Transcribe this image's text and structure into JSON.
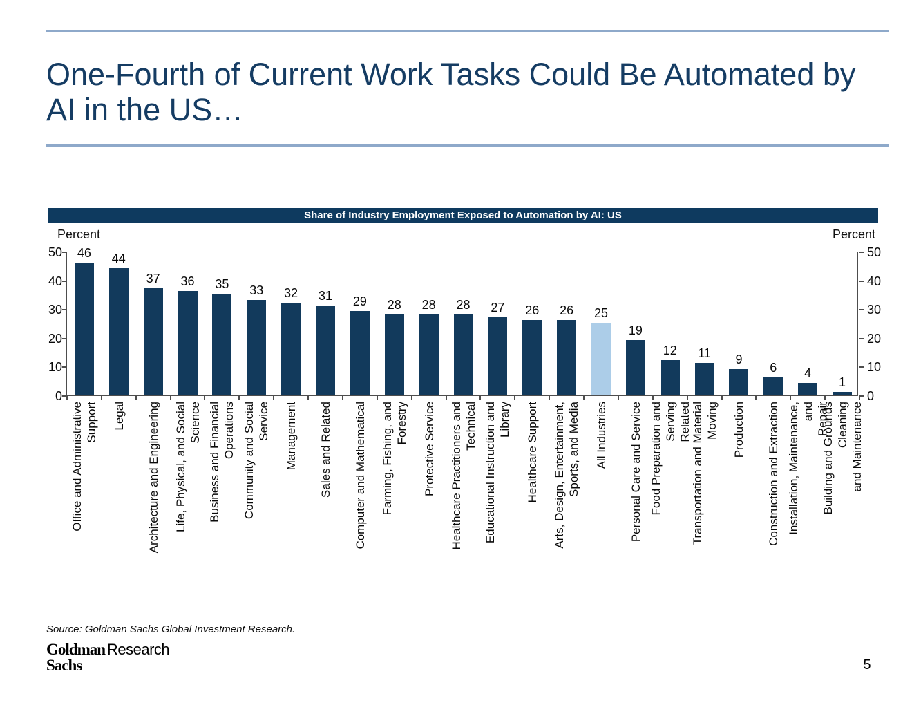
{
  "slide": {
    "title": "One-Fourth of Current Work Tasks Could Be Automated by AI in the US…",
    "source_note": "Source: Goldman Sachs Global Investment Research.",
    "page_number": "5",
    "logo": {
      "word1": "Goldman",
      "word2": "Sachs",
      "division": "Research"
    },
    "rule_color": "#8ea9ca",
    "title_color": "#153c63"
  },
  "chart_data": {
    "type": "bar",
    "title": "Share of Industry Employment Exposed to Automation by AI: US",
    "ylabel_left": "Percent",
    "ylabel_right": "Percent",
    "ylim": [
      0,
      50
    ],
    "y_ticks": [
      50,
      40,
      30,
      20,
      10,
      0
    ],
    "grid": false,
    "legend": "none",
    "categories": [
      "Office and Administrative\nSupport",
      "Legal",
      "Architecture and Engineering",
      "Life, Physical, and Social\nScience",
      "Business and Financial\nOperations",
      "Community and Social Service",
      "Management",
      "Sales and Related",
      "Computer and Mathematical",
      "Farming, Fishing, and Forestry",
      "Protective Service",
      "Healthcare Practitioners and\nTechnical",
      "Educational Instruction and\nLibrary",
      "Healthcare Support",
      "Arts, Design, Entertainment,\nSports, and Media",
      "All Industries",
      "Personal Care and Service",
      "Food Preparation and Serving\nRelated",
      "Transportation and Material\nMoving",
      "Production",
      "Construction and Extraction",
      "Installation, Maintenance, and\nRepair",
      "Building and Grounds Cleaning\nand Maintenance"
    ],
    "values": [
      46,
      44,
      37,
      36,
      35,
      33,
      32,
      31,
      29,
      28,
      28,
      28,
      27,
      26,
      26,
      25,
      19,
      12,
      11,
      9,
      6,
      4,
      1
    ],
    "highlight_category": "All Industries",
    "highlight_index": 15,
    "bar_color": "#123a5c",
    "highlight_color": "#accde8",
    "header_bg": "#0e3a5f",
    "header_text_color": "#ffffff"
  }
}
